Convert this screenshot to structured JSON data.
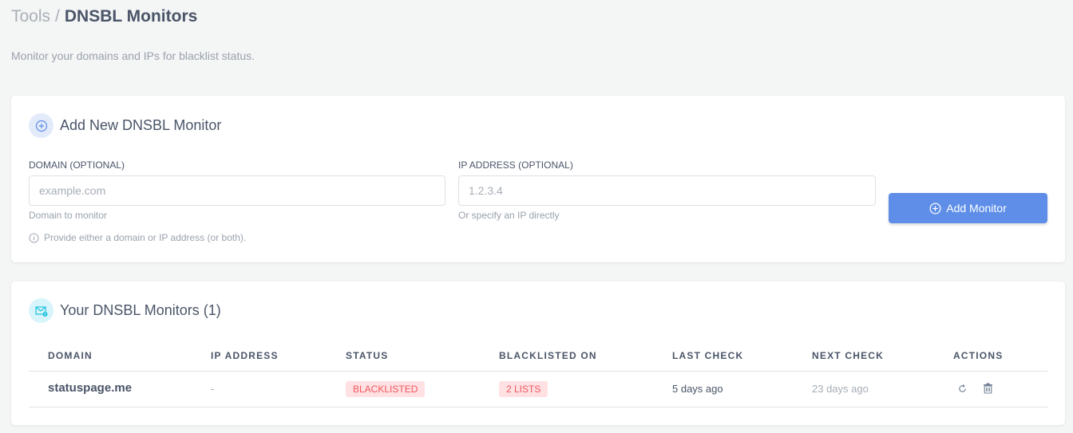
{
  "breadcrumb": {
    "parent": "Tools",
    "separator": "/",
    "current": "DNSBL Monitors"
  },
  "subtitle": "Monitor your domains and IPs for blacklist status.",
  "add_card": {
    "title": "Add New DNSBL Monitor",
    "domain_label": "DOMAIN (OPTIONAL)",
    "domain_placeholder": "example.com",
    "domain_value": "",
    "domain_help": "Domain to monitor",
    "ip_label": "IP ADDRESS (OPTIONAL)",
    "ip_placeholder": "1.2.3.4",
    "ip_value": "",
    "ip_help": "Or specify an IP directly",
    "note": "Provide either a domain or IP address (or both).",
    "button_label": "Add Monitor"
  },
  "monitors_card": {
    "title": "Your DNSBL Monitors (1)",
    "columns": [
      "DOMAIN",
      "IP ADDRESS",
      "STATUS",
      "BLACKLISTED ON",
      "LAST CHECK",
      "NEXT CHECK",
      "ACTIONS"
    ],
    "rows": [
      {
        "domain": "statuspage.me",
        "ip": "-",
        "status": "BLACKLISTED",
        "blacklisted_on": "2 LISTS",
        "last_check": "5 days ago",
        "next_check": "23 days ago"
      }
    ]
  },
  "colors": {
    "accent": "#5e8ee8",
    "danger": "#f0565d",
    "danger_bg": "#ffe1e3"
  }
}
